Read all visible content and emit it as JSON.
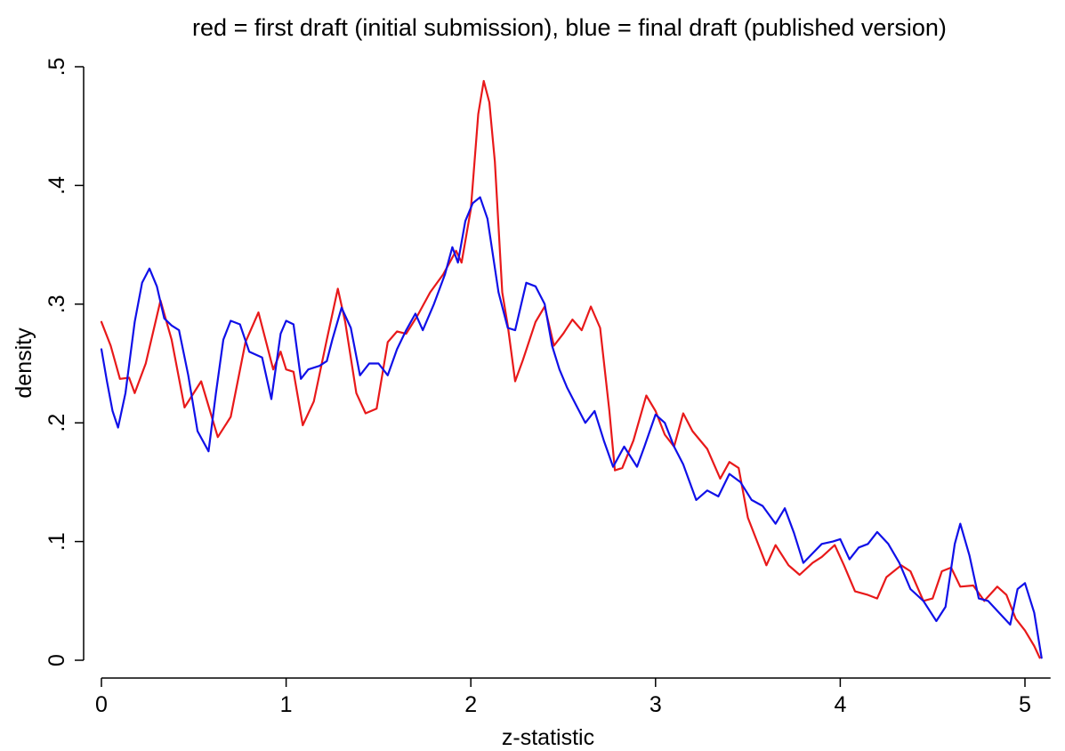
{
  "chart_data": {
    "type": "line",
    "title": "red = first draft (initial submission), blue = final draft (published version)",
    "xlabel": "z-statistic",
    "ylabel": "density",
    "xlim": [
      0,
      5.1
    ],
    "ylim": [
      0,
      0.5
    ],
    "grid": false,
    "xticks": [
      {
        "value": 0,
        "label": "0"
      },
      {
        "value": 1,
        "label": "1"
      },
      {
        "value": 2,
        "label": "2"
      },
      {
        "value": 3,
        "label": "3"
      },
      {
        "value": 4,
        "label": "4"
      },
      {
        "value": 5,
        "label": "5"
      }
    ],
    "yticks": [
      {
        "value": 0,
        "label": "0"
      },
      {
        "value": 0.1,
        "label": ".1"
      },
      {
        "value": 0.2,
        "label": ".2"
      },
      {
        "value": 0.3,
        "label": ".3"
      },
      {
        "value": 0.4,
        "label": ".4"
      },
      {
        "value": 0.5,
        "label": ".5"
      }
    ],
    "series": [
      {
        "color": "#e8191a",
        "points": [
          [
            0.0,
            0.285
          ],
          [
            0.05,
            0.265
          ],
          [
            0.1,
            0.237
          ],
          [
            0.15,
            0.238
          ],
          [
            0.18,
            0.225
          ],
          [
            0.24,
            0.25
          ],
          [
            0.32,
            0.303
          ],
          [
            0.38,
            0.27
          ],
          [
            0.45,
            0.213
          ],
          [
            0.54,
            0.235
          ],
          [
            0.63,
            0.188
          ],
          [
            0.7,
            0.205
          ],
          [
            0.78,
            0.268
          ],
          [
            0.85,
            0.293
          ],
          [
            0.93,
            0.245
          ],
          [
            0.97,
            0.26
          ],
          [
            1.0,
            0.245
          ],
          [
            1.04,
            0.243
          ],
          [
            1.09,
            0.198
          ],
          [
            1.15,
            0.218
          ],
          [
            1.22,
            0.27
          ],
          [
            1.28,
            0.313
          ],
          [
            1.32,
            0.285
          ],
          [
            1.38,
            0.225
          ],
          [
            1.43,
            0.208
          ],
          [
            1.49,
            0.212
          ],
          [
            1.55,
            0.268
          ],
          [
            1.6,
            0.277
          ],
          [
            1.65,
            0.275
          ],
          [
            1.71,
            0.29
          ],
          [
            1.78,
            0.31
          ],
          [
            1.85,
            0.325
          ],
          [
            1.92,
            0.345
          ],
          [
            1.95,
            0.335
          ],
          [
            2.0,
            0.38
          ],
          [
            2.04,
            0.46
          ],
          [
            2.07,
            0.488
          ],
          [
            2.1,
            0.47
          ],
          [
            2.13,
            0.42
          ],
          [
            2.17,
            0.31
          ],
          [
            2.2,
            0.282
          ],
          [
            2.24,
            0.235
          ],
          [
            2.28,
            0.252
          ],
          [
            2.35,
            0.285
          ],
          [
            2.4,
            0.298
          ],
          [
            2.45,
            0.265
          ],
          [
            2.5,
            0.275
          ],
          [
            2.55,
            0.287
          ],
          [
            2.6,
            0.278
          ],
          [
            2.65,
            0.298
          ],
          [
            2.7,
            0.28
          ],
          [
            2.75,
            0.21
          ],
          [
            2.78,
            0.16
          ],
          [
            2.82,
            0.162
          ],
          [
            2.88,
            0.185
          ],
          [
            2.95,
            0.223
          ],
          [
            3.0,
            0.21
          ],
          [
            3.05,
            0.19
          ],
          [
            3.1,
            0.18
          ],
          [
            3.15,
            0.208
          ],
          [
            3.2,
            0.193
          ],
          [
            3.28,
            0.178
          ],
          [
            3.35,
            0.153
          ],
          [
            3.4,
            0.167
          ],
          [
            3.45,
            0.162
          ],
          [
            3.5,
            0.12
          ],
          [
            3.55,
            0.1
          ],
          [
            3.6,
            0.08
          ],
          [
            3.65,
            0.097
          ],
          [
            3.72,
            0.08
          ],
          [
            3.78,
            0.072
          ],
          [
            3.85,
            0.082
          ],
          [
            3.9,
            0.087
          ],
          [
            3.97,
            0.097
          ],
          [
            4.02,
            0.08
          ],
          [
            4.08,
            0.058
          ],
          [
            4.15,
            0.055
          ],
          [
            4.2,
            0.052
          ],
          [
            4.25,
            0.07
          ],
          [
            4.33,
            0.08
          ],
          [
            4.38,
            0.075
          ],
          [
            4.45,
            0.05
          ],
          [
            4.5,
            0.052
          ],
          [
            4.55,
            0.075
          ],
          [
            4.6,
            0.078
          ],
          [
            4.65,
            0.062
          ],
          [
            4.72,
            0.063
          ],
          [
            4.78,
            0.05
          ],
          [
            4.85,
            0.062
          ],
          [
            4.9,
            0.055
          ],
          [
            4.95,
            0.035
          ],
          [
            5.0,
            0.025
          ],
          [
            5.05,
            0.012
          ],
          [
            5.08,
            0.002
          ]
        ]
      },
      {
        "color": "#1010e8",
        "points": [
          [
            0.0,
            0.262
          ],
          [
            0.03,
            0.235
          ],
          [
            0.06,
            0.21
          ],
          [
            0.09,
            0.196
          ],
          [
            0.13,
            0.225
          ],
          [
            0.18,
            0.285
          ],
          [
            0.22,
            0.318
          ],
          [
            0.26,
            0.33
          ],
          [
            0.3,
            0.315
          ],
          [
            0.34,
            0.288
          ],
          [
            0.38,
            0.282
          ],
          [
            0.42,
            0.278
          ],
          [
            0.47,
            0.24
          ],
          [
            0.52,
            0.193
          ],
          [
            0.58,
            0.176
          ],
          [
            0.62,
            0.225
          ],
          [
            0.66,
            0.27
          ],
          [
            0.7,
            0.286
          ],
          [
            0.75,
            0.283
          ],
          [
            0.8,
            0.26
          ],
          [
            0.87,
            0.255
          ],
          [
            0.92,
            0.22
          ],
          [
            0.97,
            0.275
          ],
          [
            1.0,
            0.286
          ],
          [
            1.04,
            0.283
          ],
          [
            1.08,
            0.237
          ],
          [
            1.12,
            0.245
          ],
          [
            1.18,
            0.248
          ],
          [
            1.22,
            0.252
          ],
          [
            1.25,
            0.27
          ],
          [
            1.3,
            0.297
          ],
          [
            1.35,
            0.28
          ],
          [
            1.4,
            0.24
          ],
          [
            1.45,
            0.25
          ],
          [
            1.5,
            0.25
          ],
          [
            1.55,
            0.24
          ],
          [
            1.6,
            0.262
          ],
          [
            1.65,
            0.278
          ],
          [
            1.7,
            0.292
          ],
          [
            1.74,
            0.278
          ],
          [
            1.8,
            0.3
          ],
          [
            1.86,
            0.325
          ],
          [
            1.9,
            0.348
          ],
          [
            1.93,
            0.335
          ],
          [
            1.97,
            0.37
          ],
          [
            2.01,
            0.385
          ],
          [
            2.05,
            0.39
          ],
          [
            2.09,
            0.372
          ],
          [
            2.15,
            0.31
          ],
          [
            2.2,
            0.28
          ],
          [
            2.24,
            0.278
          ],
          [
            2.3,
            0.318
          ],
          [
            2.35,
            0.315
          ],
          [
            2.4,
            0.3
          ],
          [
            2.44,
            0.265
          ],
          [
            2.48,
            0.245
          ],
          [
            2.52,
            0.23
          ],
          [
            2.57,
            0.215
          ],
          [
            2.62,
            0.2
          ],
          [
            2.67,
            0.21
          ],
          [
            2.72,
            0.185
          ],
          [
            2.77,
            0.163
          ],
          [
            2.83,
            0.18
          ],
          [
            2.9,
            0.163
          ],
          [
            2.94,
            0.18
          ],
          [
            3.0,
            0.207
          ],
          [
            3.05,
            0.2
          ],
          [
            3.1,
            0.18
          ],
          [
            3.15,
            0.165
          ],
          [
            3.22,
            0.135
          ],
          [
            3.28,
            0.143
          ],
          [
            3.34,
            0.138
          ],
          [
            3.4,
            0.157
          ],
          [
            3.46,
            0.15
          ],
          [
            3.52,
            0.135
          ],
          [
            3.58,
            0.13
          ],
          [
            3.65,
            0.115
          ],
          [
            3.7,
            0.128
          ],
          [
            3.75,
            0.107
          ],
          [
            3.8,
            0.082
          ],
          [
            3.85,
            0.09
          ],
          [
            3.9,
            0.098
          ],
          [
            3.96,
            0.1
          ],
          [
            4.0,
            0.102
          ],
          [
            4.05,
            0.085
          ],
          [
            4.1,
            0.095
          ],
          [
            4.15,
            0.098
          ],
          [
            4.2,
            0.108
          ],
          [
            4.26,
            0.098
          ],
          [
            4.32,
            0.082
          ],
          [
            4.38,
            0.06
          ],
          [
            4.45,
            0.05
          ],
          [
            4.52,
            0.033
          ],
          [
            4.57,
            0.045
          ],
          [
            4.62,
            0.098
          ],
          [
            4.65,
            0.115
          ],
          [
            4.7,
            0.088
          ],
          [
            4.75,
            0.052
          ],
          [
            4.8,
            0.05
          ],
          [
            4.86,
            0.04
          ],
          [
            4.92,
            0.03
          ],
          [
            4.96,
            0.06
          ],
          [
            5.0,
            0.065
          ],
          [
            5.05,
            0.04
          ],
          [
            5.09,
            0.002
          ]
        ]
      }
    ]
  }
}
